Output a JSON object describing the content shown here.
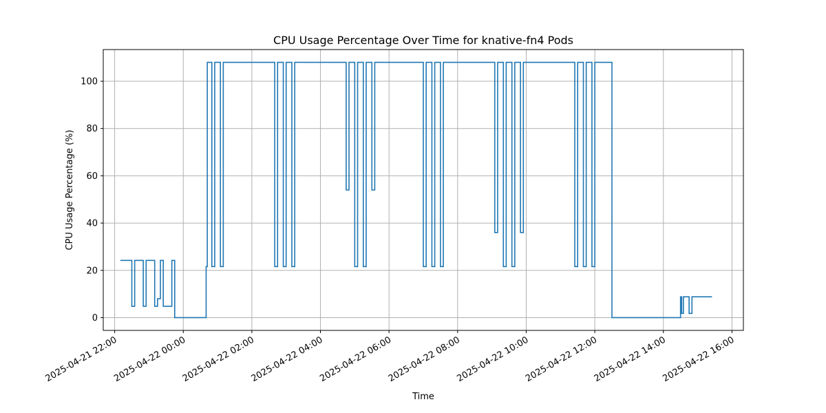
{
  "chart_data": {
    "type": "line",
    "step": true,
    "title": "CPU Usage Percentage Over Time for knative-fn4 Pods",
    "xlabel": "Time",
    "ylabel": "CPU Usage Percentage (%)",
    "x_is_time": true,
    "xlim": [
      "2025-04-21 21:40",
      "2025-04-22 16:20"
    ],
    "ylim": [
      -5.4,
      113.4
    ],
    "x_ticks": [
      "2025-04-21 22:00",
      "2025-04-22 00:00",
      "2025-04-22 02:00",
      "2025-04-22 04:00",
      "2025-04-22 06:00",
      "2025-04-22 08:00",
      "2025-04-22 10:00",
      "2025-04-22 12:00",
      "2025-04-22 14:00",
      "2025-04-22 16:00"
    ],
    "y_ticks": [
      0,
      20,
      40,
      60,
      80,
      100
    ],
    "grid": true,
    "line_color": "#1f77b4",
    "series": [
      {
        "x": [
          "2025-04-21 22:10",
          "2025-04-21 22:30",
          "2025-04-21 22:35",
          "2025-04-21 22:50",
          "2025-04-21 22:55",
          "2025-04-21 23:10",
          "2025-04-21 23:15",
          "2025-04-21 23:20",
          "2025-04-21 23:25",
          "2025-04-21 23:40",
          "2025-04-21 23:45",
          "2025-04-21 23:50",
          "2025-04-22 00:40",
          "2025-04-22 00:42",
          "2025-04-22 00:50",
          "2025-04-22 00:55",
          "2025-04-22 01:05",
          "2025-04-22 01:10",
          "2025-04-22 02:40",
          "2025-04-22 02:45",
          "2025-04-22 02:55",
          "2025-04-22 03:00",
          "2025-04-22 03:10",
          "2025-04-22 03:15",
          "2025-04-22 04:45",
          "2025-04-22 04:50",
          "2025-04-22 05:00",
          "2025-04-22 05:05",
          "2025-04-22 05:15",
          "2025-04-22 05:20",
          "2025-04-22 05:30",
          "2025-04-22 05:35",
          "2025-04-22 07:00",
          "2025-04-22 07:05",
          "2025-04-22 07:15",
          "2025-04-22 07:20",
          "2025-04-22 07:30",
          "2025-04-22 07:35",
          "2025-04-22 09:05",
          "2025-04-22 09:10",
          "2025-04-22 09:20",
          "2025-04-22 09:25",
          "2025-04-22 09:35",
          "2025-04-22 09:40",
          "2025-04-22 09:50",
          "2025-04-22 09:55",
          "2025-04-22 11:25",
          "2025-04-22 11:30",
          "2025-04-22 11:40",
          "2025-04-22 11:45",
          "2025-04-22 11:55",
          "2025-04-22 12:00",
          "2025-04-22 12:30",
          "2025-04-22 14:30",
          "2025-04-22 14:32",
          "2025-04-22 14:35",
          "2025-04-22 14:45",
          "2025-04-22 14:50",
          "2025-04-22 15:25"
        ],
        "y": [
          24.2,
          4.8,
          24.2,
          4.8,
          24.2,
          4.8,
          8.0,
          24.2,
          4.8,
          24.2,
          0,
          0,
          21.6,
          108,
          21.6,
          108,
          21.6,
          108,
          21.6,
          108,
          21.6,
          108,
          21.6,
          108,
          54,
          108,
          21.6,
          108,
          21.6,
          108,
          54,
          108,
          21.6,
          108,
          21.6,
          108,
          21.6,
          108,
          36,
          108,
          21.6,
          108,
          21.6,
          108,
          36,
          108,
          21.6,
          108,
          21.6,
          108,
          21.6,
          108,
          0,
          8.8,
          1.8,
          8.8,
          1.8,
          8.8,
          8.8
        ]
      }
    ]
  }
}
